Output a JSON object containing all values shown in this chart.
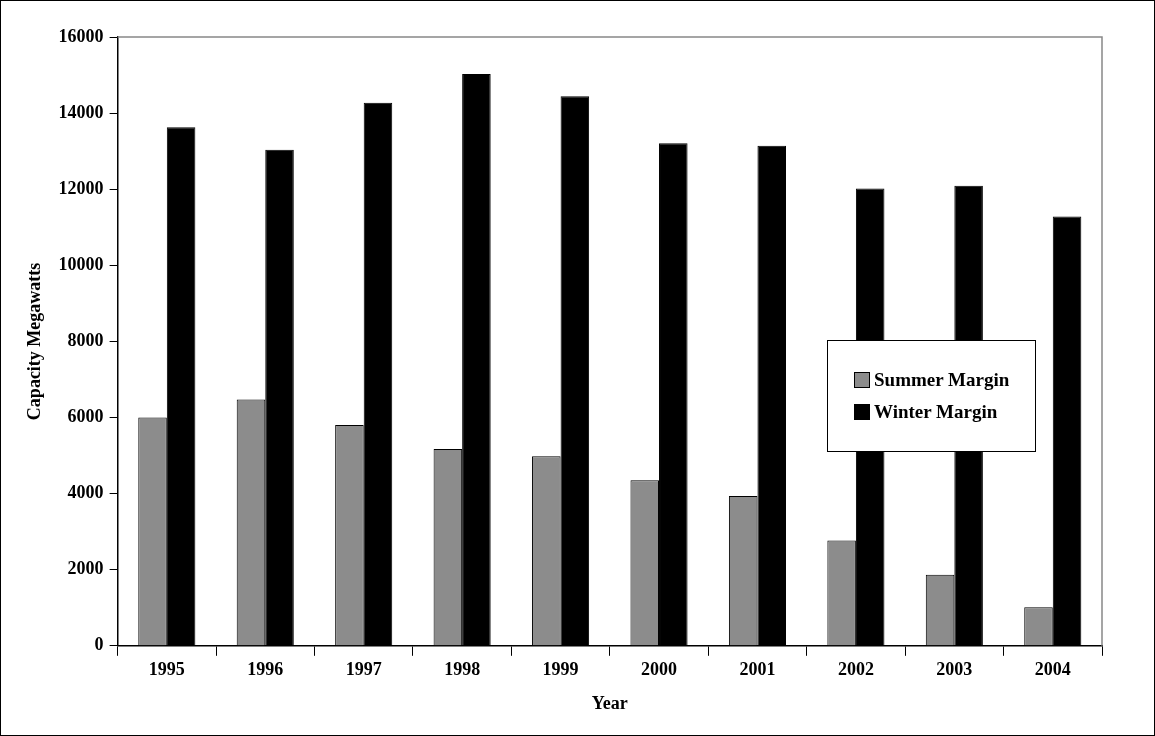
{
  "chart_data": {
    "type": "bar",
    "xlabel": "Year",
    "ylabel": "Capacity Megawatts",
    "categories": [
      "1995",
      "1996",
      "1997",
      "1998",
      "1999",
      "2000",
      "2001",
      "2002",
      "2003",
      "2004"
    ],
    "series": [
      {
        "name": "Summer Margin",
        "color": "#8c8c8c",
        "values": [
          6000,
          6470,
          5800,
          5170,
          4980,
          4350,
          3940,
          2770,
          1870,
          1010
        ]
      },
      {
        "name": "Winter Margin",
        "color": "#000000",
        "values": [
          13630,
          13040,
          14270,
          15030,
          14440,
          13210,
          13140,
          12020,
          12090,
          11280
        ]
      }
    ],
    "ylim": [
      0,
      16000
    ],
    "yticks": [
      0,
      2000,
      4000,
      6000,
      8000,
      10000,
      12000,
      14000,
      16000
    ],
    "grid": false,
    "legend": "right"
  }
}
